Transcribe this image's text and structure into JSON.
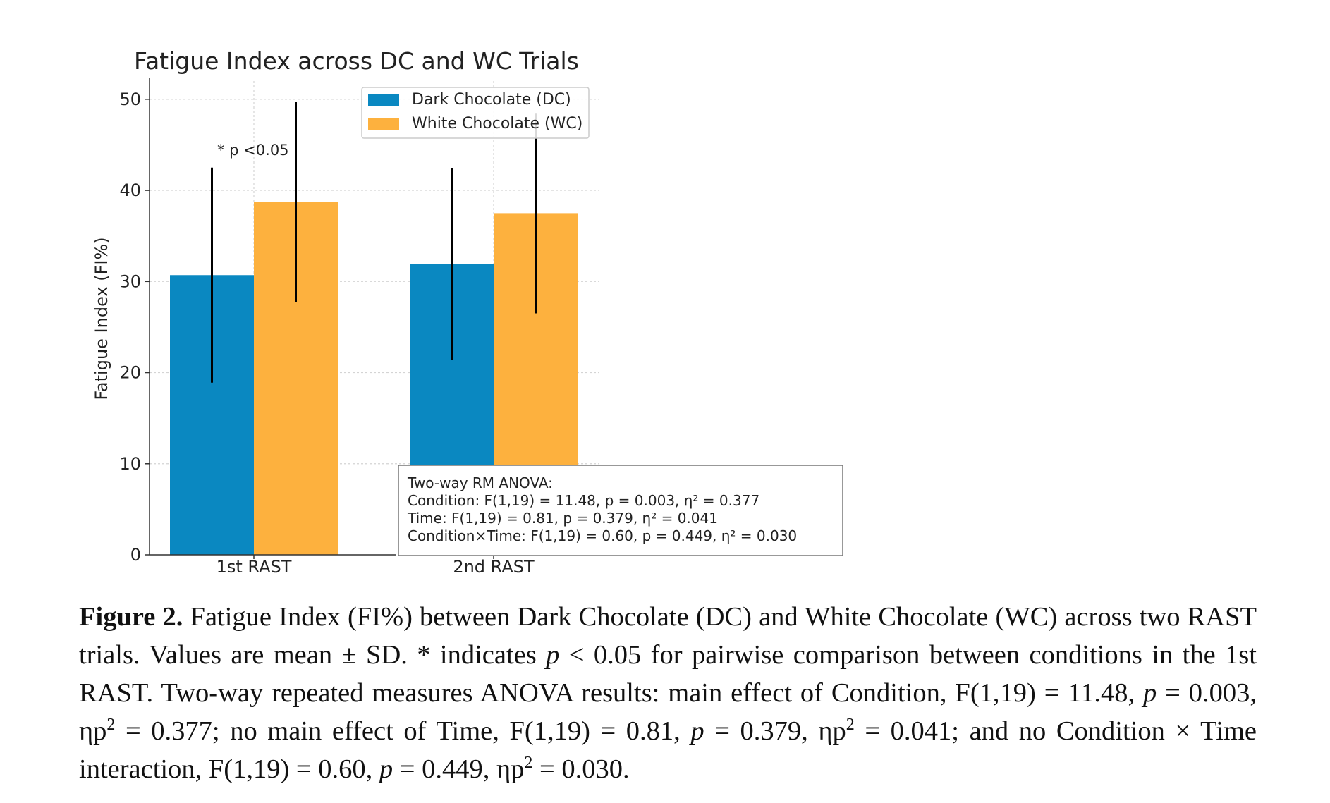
{
  "chart_data": {
    "type": "bar",
    "title": "Fatigue Index across DC and WC Trials",
    "xlabel": "",
    "ylabel": "Fatigue Index (FI%)",
    "ylim": [
      0,
      52
    ],
    "yticks": [
      "0",
      "10",
      "20",
      "30",
      "40",
      "50"
    ],
    "categories": [
      "1st RAST",
      "2nd RAST"
    ],
    "series": [
      {
        "name": "Dark Chocolate (DC)",
        "color": "#0a88c1",
        "values": [
          30.7,
          31.9
        ],
        "sd": [
          11.8,
          10.5
        ]
      },
      {
        "name": "White Chocolate (WC)",
        "color": "#fdb13e",
        "values": [
          38.7,
          37.5
        ],
        "sd": [
          11.0,
          11.0
        ]
      }
    ],
    "grid": true,
    "legend_position": "upper-center",
    "annotation": "* p <0.05",
    "stats_box": [
      "Two-way RM ANOVA:",
      "Condition: F(1,19) = 11.48, p = 0.003, η² = 0.377",
      "Time: F(1,19) = 0.81, p = 0.379, η² = 0.041",
      "Condition×Time: F(1,19) = 0.60, p = 0.449, η² = 0.030"
    ]
  },
  "caption": {
    "label": "Figure 2.",
    "t1": " Fatigue Index (FI%) between Dark Chocolate (DC) and White Chocolate (WC) across two RAST trials. Values are mean ± SD. * indicates ",
    "p1": "p",
    "t2": " < 0.05 for pairwise comparison between conditions in the 1st RAST. Two-way repeated measures ANOVA results: main effect of Condition, F(1,19) = 11.48, ",
    "p2": "p",
    "t3": " = 0.003, ηp",
    "s1": "2",
    "t4": " = 0.377; no main effect of Time, F(1,19) = 0.81, ",
    "p3": "p",
    "t5": " = 0.379, ηp",
    "s2": "2",
    "t6": " = 0.041; and no Condition × Time interaction, F(1,19) = 0.60, ",
    "p4": "p",
    "t7": " = 0.449, ηp",
    "s3": "2",
    "t8": " = 0.030."
  }
}
